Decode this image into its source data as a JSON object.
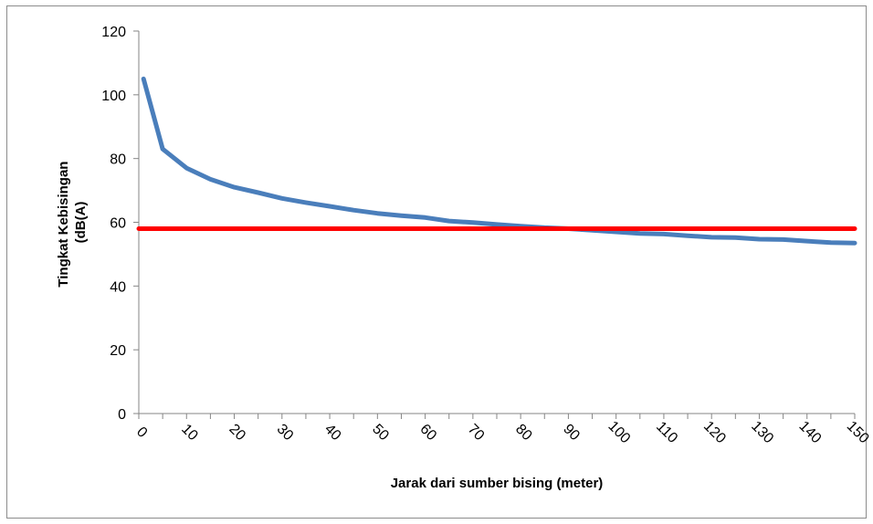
{
  "chart_data": {
    "type": "line",
    "title": "",
    "xlabel": "Jarak dari sumber bising (meter)",
    "ylabel_lines": [
      "Tingkat Kebisingan",
      "(dB(A)"
    ],
    "xlim": [
      0,
      150
    ],
    "ylim": [
      0,
      120
    ],
    "x_ticks": [
      0,
      10,
      20,
      30,
      40,
      50,
      60,
      70,
      80,
      90,
      100,
      110,
      120,
      130,
      140,
      150
    ],
    "y_ticks": [
      0,
      20,
      40,
      60,
      80,
      100,
      120
    ],
    "grid": false,
    "legend": "none",
    "series": [
      {
        "color": "#4a7ebb",
        "x": [
          1,
          5,
          10,
          15,
          20,
          25,
          30,
          35,
          40,
          45,
          50,
          55,
          60,
          65,
          70,
          75,
          80,
          85,
          90,
          95,
          100,
          105,
          110,
          115,
          120,
          125,
          130,
          135,
          140,
          145,
          150
        ],
        "values": [
          105,
          83,
          77,
          73.5,
          71,
          69.3,
          67.5,
          66.2,
          65,
          63.8,
          62.8,
          62.1,
          61.5,
          60.4,
          59.9,
          59.3,
          58.8,
          58.3,
          58,
          57.5,
          57,
          56.5,
          56.3,
          55.8,
          55.3,
          55.2,
          54.7,
          54.6,
          54.1,
          53.6,
          53.5
        ]
      },
      {
        "color": "#ff0000",
        "x": [
          0,
          150
        ],
        "values": [
          58,
          58
        ]
      }
    ]
  }
}
